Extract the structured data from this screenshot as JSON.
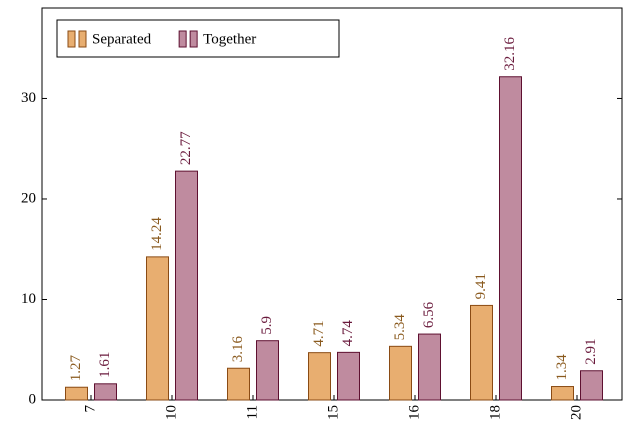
{
  "chart_data": {
    "type": "bar",
    "categories": [
      "7",
      "10",
      "11",
      "15",
      "16",
      "18",
      "20"
    ],
    "series": [
      {
        "name": "Separated",
        "color": "#e8ae70",
        "values": [
          1.27,
          14.24,
          3.16,
          4.71,
          5.34,
          9.41,
          1.34
        ]
      },
      {
        "name": "Together",
        "color": "#bf8b9f",
        "values": [
          1.61,
          22.77,
          5.9,
          4.74,
          6.56,
          32.16,
          2.91
        ]
      }
    ],
    "ylim": [
      0,
      39
    ],
    "yticks": [
      0,
      10,
      20,
      30
    ],
    "legend": "upper left"
  }
}
